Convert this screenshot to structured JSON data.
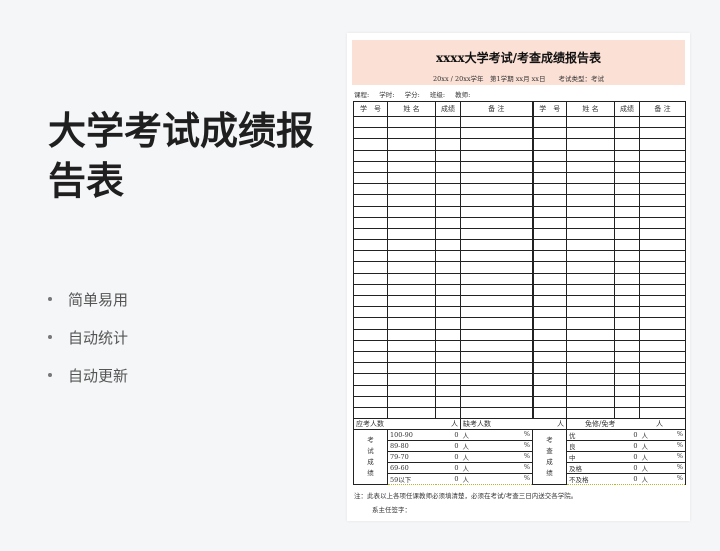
{
  "promo": {
    "headline": "大学考试成绩报告表",
    "features": [
      "简单易用",
      "自动统计",
      "自动更新"
    ]
  },
  "sheet": {
    "title": "xxxx大学考试/考查成绩报告表",
    "subtitle": "20xx / 20xx学年　第1学期  xx月 xx日　　考试类型：考试",
    "info": [
      "课程:",
      "学时:",
      "学分:",
      "班级:",
      "教师:"
    ],
    "headers": [
      "学　号",
      "姓 名",
      "成绩",
      "备 注",
      "学　号",
      "姓 名",
      "成绩",
      "备 注"
    ],
    "summary_top": {
      "expected": "应考人数",
      "absent": "缺考人数",
      "exempt": "免修/免考",
      "unit": "人"
    },
    "exam_label": "考试成绩",
    "check_label": "考查成绩",
    "exam_rows": [
      {
        "range": "100-90",
        "count": "0",
        "unit": "人",
        "pct": "%"
      },
      {
        "range": "89-80",
        "count": "0",
        "unit": "人",
        "pct": "%"
      },
      {
        "range": "79-70",
        "count": "0",
        "unit": "人",
        "pct": "%"
      },
      {
        "range": "69-60",
        "count": "0",
        "unit": "人",
        "pct": "%"
      },
      {
        "range": "59以下",
        "count": "0",
        "unit": "人",
        "pct": "%"
      }
    ],
    "check_rows": [
      {
        "range": "优",
        "count": "0",
        "unit": "人",
        "pct": "%"
      },
      {
        "range": "良",
        "count": "0",
        "unit": "人",
        "pct": "%"
      },
      {
        "range": "中",
        "count": "0",
        "unit": "人",
        "pct": "%"
      },
      {
        "range": "及格",
        "count": "0",
        "unit": "人",
        "pct": "%"
      },
      {
        "range": "不及格",
        "count": "0",
        "unit": "人",
        "pct": "%"
      }
    ],
    "note": "注：此表以上各项任课教师必须填清楚，必须在考试/考查三日内送交各学院。",
    "signature": "系主任签字："
  },
  "colors": {
    "band": "#fbe0d5",
    "background": "#f5f6f8"
  }
}
